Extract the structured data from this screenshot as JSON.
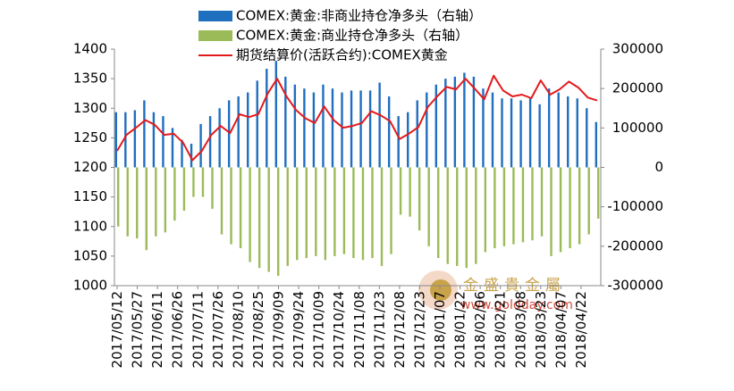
{
  "chart_data": {
    "type": "bar-line",
    "x": [
      "2017/05/12",
      "2017/05/19",
      "2017/05/26",
      "2017/06/02",
      "2017/06/09",
      "2017/06/16",
      "2017/06/23",
      "2017/06/30",
      "2017/07/07",
      "2017/07/14",
      "2017/07/21",
      "2017/07/28",
      "2017/08/04",
      "2017/08/11",
      "2017/08/18",
      "2017/08/25",
      "2017/09/01",
      "2017/09/08",
      "2017/09/15",
      "2017/09/22",
      "2017/09/29",
      "2017/10/06",
      "2017/10/13",
      "2017/10/20",
      "2017/10/27",
      "2017/11/03",
      "2017/11/10",
      "2017/11/17",
      "2017/11/24",
      "2017/12/01",
      "2017/12/08",
      "2017/12/15",
      "2017/12/22",
      "2017/12/29",
      "2018/01/05",
      "2018/01/12",
      "2018/01/19",
      "2018/01/26",
      "2018/02/02",
      "2018/02/09",
      "2018/02/16",
      "2018/02/23",
      "2018/03/02",
      "2018/03/09",
      "2018/03/16",
      "2018/03/23",
      "2018/03/30",
      "2018/04/06",
      "2018/04/13",
      "2018/04/20",
      "2018/04/27",
      "2018/05/04"
    ],
    "series": [
      {
        "name": "COMEX:黄金:非商业持仓净多头（右轴）",
        "kind": "bar",
        "axis": "y2",
        "color": "#1f6fbf",
        "values": [
          140000,
          140000,
          145000,
          170000,
          140000,
          130000,
          100000,
          70000,
          60000,
          110000,
          130000,
          150000,
          170000,
          180000,
          190000,
          220000,
          250000,
          270000,
          230000,
          210000,
          200000,
          190000,
          210000,
          200000,
          190000,
          195000,
          195000,
          195000,
          215000,
          180000,
          130000,
          140000,
          170000,
          190000,
          210000,
          225000,
          230000,
          240000,
          230000,
          200000,
          190000,
          175000,
          175000,
          170000,
          175000,
          160000,
          200000,
          190000,
          180000,
          175000,
          150000,
          115000
        ]
      },
      {
        "name": "COMEX:黄金:商业持仓净多头（右轴）",
        "kind": "bar",
        "axis": "y2",
        "color": "#9bbb59",
        "values": [
          -150000,
          -175000,
          -180000,
          -210000,
          -175000,
          -165000,
          -135000,
          -110000,
          -75000,
          -75000,
          -105000,
          -170000,
          -195000,
          -205000,
          -240000,
          -255000,
          -265000,
          -275000,
          -250000,
          -235000,
          -230000,
          -225000,
          -235000,
          -225000,
          -220000,
          -230000,
          -235000,
          -230000,
          -250000,
          -220000,
          -120000,
          -125000,
          -160000,
          -200000,
          -230000,
          -245000,
          -250000,
          -255000,
          -245000,
          -215000,
          -205000,
          -200000,
          -195000,
          -190000,
          -185000,
          -175000,
          -225000,
          -215000,
          -205000,
          -195000,
          -170000,
          -130000
        ]
      },
      {
        "name": "期货结算价(活跃合约):COMEX黄金",
        "kind": "line",
        "axis": "y",
        "color": "#e31a1c",
        "values": [
          1228,
          1255,
          1267,
          1280,
          1272,
          1255,
          1257,
          1242,
          1212,
          1228,
          1255,
          1270,
          1258,
          1290,
          1285,
          1290,
          1325,
          1350,
          1320,
          1297,
          1283,
          1275,
          1303,
          1280,
          1267,
          1270,
          1275,
          1295,
          1288,
          1278,
          1248,
          1257,
          1268,
          1302,
          1320,
          1336,
          1332,
          1350,
          1333,
          1315,
          1355,
          1330,
          1320,
          1323,
          1317,
          1347,
          1323,
          1332,
          1345,
          1335,
          1318,
          1313
        ]
      }
    ],
    "xlim": [
      "2017/05/12",
      "2018/05/04"
    ],
    "xticks": [
      "2017/05/12",
      "2017/05/27",
      "2017/06/11",
      "2017/06/26",
      "2017/07/11",
      "2017/07/26",
      "2017/08/10",
      "2017/08/25",
      "2017/09/09",
      "2017/09/24",
      "2017/10/09",
      "2017/10/24",
      "2017/11/08",
      "2017/11/23",
      "2017/12/08",
      "2017/12/23",
      "2018/01/07",
      "2018/01/22",
      "2018/02/06",
      "2018/02/21",
      "2018/03/08",
      "2018/03/23",
      "2018/04/07",
      "2018/04/22"
    ],
    "ylim": [
      1000,
      1400
    ],
    "yticks": [
      1000,
      1050,
      1100,
      1150,
      1200,
      1250,
      1300,
      1350,
      1400
    ],
    "y2lim": [
      -300000,
      300000
    ],
    "y2ticks": [
      -300000,
      -200000,
      -100000,
      0,
      100000,
      200000,
      300000
    ],
    "watermark": {
      "name": "金盛貴金屬",
      "url": "www.goldday.com"
    }
  }
}
